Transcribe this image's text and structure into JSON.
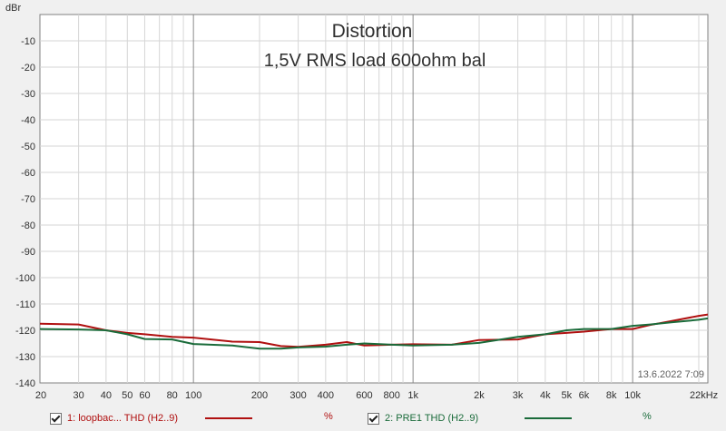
{
  "chart_data": {
    "type": "line",
    "title": "Distortion",
    "subtitle": "1,5V RMS  load 600ohm bal",
    "ylabel": "dBr",
    "xlabel": "",
    "xscale": "log",
    "xlim": [
      20,
      22000
    ],
    "ylim": [
      -140,
      0
    ],
    "grid": true,
    "timestamp": "13.6.2022 7:09",
    "yticks": [
      {
        "value": -10,
        "label": "-10"
      },
      {
        "value": -20,
        "label": "-20"
      },
      {
        "value": -30,
        "label": "-30"
      },
      {
        "value": -40,
        "label": "-40"
      },
      {
        "value": -50,
        "label": "-50"
      },
      {
        "value": -60,
        "label": "-60"
      },
      {
        "value": -70,
        "label": "-70"
      },
      {
        "value": -80,
        "label": "-80"
      },
      {
        "value": -90,
        "label": "-90"
      },
      {
        "value": -100,
        "label": "-100"
      },
      {
        "value": -110,
        "label": "-110"
      },
      {
        "value": -120,
        "label": "-120"
      },
      {
        "value": -130,
        "label": "-130"
      },
      {
        "value": -140,
        "label": "-140"
      }
    ],
    "xticks": [
      {
        "value": 20,
        "label": "20"
      },
      {
        "value": 30,
        "label": "30"
      },
      {
        "value": 40,
        "label": "40"
      },
      {
        "value": 50,
        "label": "50"
      },
      {
        "value": 60,
        "label": "60"
      },
      {
        "value": 80,
        "label": "80"
      },
      {
        "value": 100,
        "label": "100"
      },
      {
        "value": 200,
        "label": "200"
      },
      {
        "value": 300,
        "label": "300"
      },
      {
        "value": 400,
        "label": "400"
      },
      {
        "value": 600,
        "label": "600"
      },
      {
        "value": 800,
        "label": "800"
      },
      {
        "value": 1000,
        "label": "1k"
      },
      {
        "value": 2000,
        "label": "2k"
      },
      {
        "value": 3000,
        "label": "3k"
      },
      {
        "value": 4000,
        "label": "4k"
      },
      {
        "value": 5000,
        "label": "5k"
      },
      {
        "value": 6000,
        "label": "6k"
      },
      {
        "value": 8000,
        "label": "8k"
      },
      {
        "value": 10000,
        "label": "10k"
      },
      {
        "value": 22000,
        "label": "22kHz"
      }
    ],
    "series": [
      {
        "name": "1: loopbac... THD (H2..9)",
        "unit": "%",
        "color": "#b01010",
        "x": [
          20,
          30,
          40,
          50,
          60,
          80,
          100,
          150,
          200,
          250,
          300,
          400,
          500,
          600,
          800,
          1000,
          1500,
          2000,
          3000,
          4000,
          5000,
          6000,
          8000,
          10000,
          12000,
          15000,
          20000,
          22000
        ],
        "y": [
          -117.5,
          -117.8,
          -120,
          -121,
          -121.5,
          -122.5,
          -122.8,
          -124.3,
          -124.5,
          -126,
          -126.3,
          -125.5,
          -124.5,
          -125.8,
          -125.5,
          -125.3,
          -125.5,
          -123.7,
          -123.5,
          -121.5,
          -121,
          -120.5,
          -119.5,
          -119.5,
          -118,
          -116.5,
          -114.5,
          -114
        ]
      },
      {
        "name": "2: PRE1 THD (H2..9)",
        "unit": "%",
        "color": "#1a6b3a",
        "x": [
          20,
          30,
          40,
          50,
          60,
          80,
          100,
          150,
          200,
          250,
          300,
          400,
          500,
          600,
          800,
          1000,
          1500,
          2000,
          3000,
          4000,
          5000,
          6000,
          8000,
          10000,
          12000,
          15000,
          20000,
          22000
        ],
        "y": [
          -119.5,
          -119.7,
          -120,
          -121.5,
          -123.3,
          -123.5,
          -125.2,
          -125.8,
          -127,
          -127,
          -126.5,
          -126.2,
          -125.5,
          -125,
          -125.5,
          -125.8,
          -125.5,
          -124.8,
          -122.5,
          -121.5,
          -120,
          -119.5,
          -119.5,
          -118.3,
          -117.8,
          -117,
          -116,
          -115.5
        ]
      }
    ]
  }
}
